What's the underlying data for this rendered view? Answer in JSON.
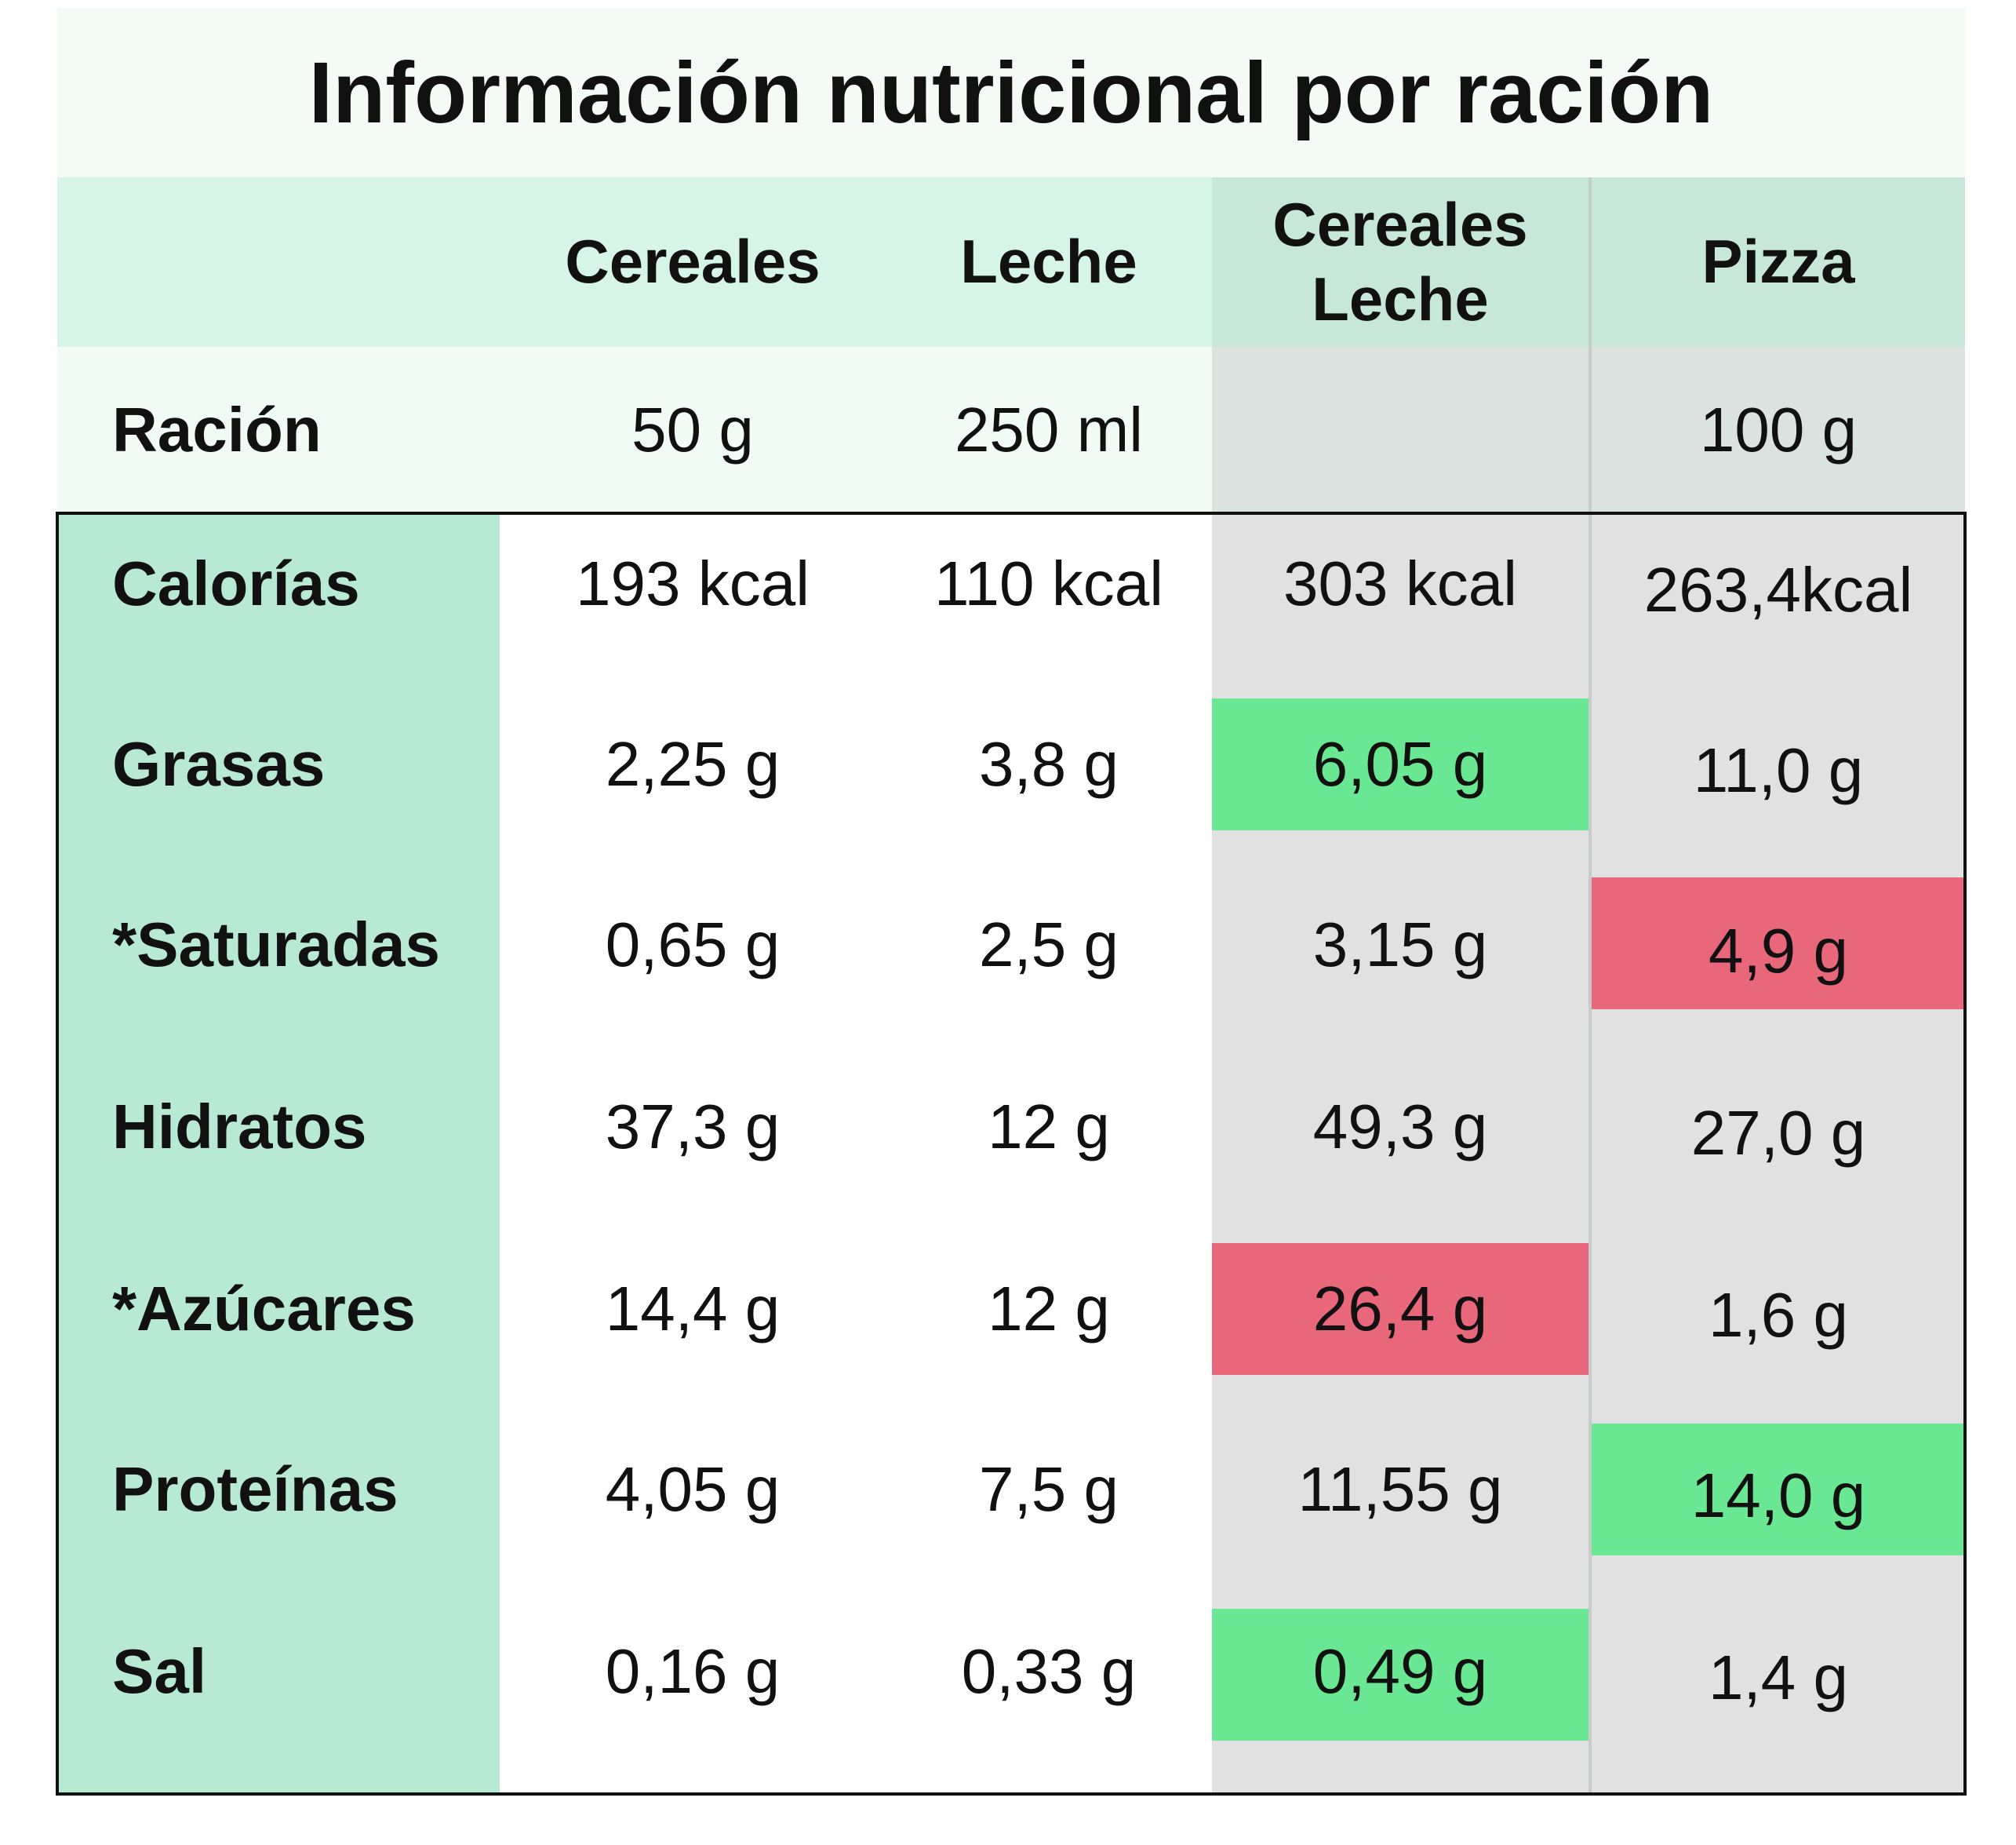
{
  "title": "Información nutricional por ración",
  "columns": [
    "Cereales",
    "Leche",
    "Cereales\nLeche",
    "Pizza"
  ],
  "racion": {
    "label": "Ración",
    "values": [
      "50 g",
      "250 ml",
      "",
      "100 g"
    ]
  },
  "rows": [
    {
      "label": "Calorías",
      "values": [
        "193 kcal",
        "110 kcal",
        "303 kcal",
        "263,4kcal"
      ]
    },
    {
      "label": "Grasas",
      "values": [
        "2,25 g",
        "3,8 g",
        "6,05 g",
        "11,0 g"
      ]
    },
    {
      "label": "*Saturadas",
      "values": [
        "0,65 g",
        "2,5 g",
        "3,15 g",
        "4,9 g"
      ]
    },
    {
      "label": "Hidratos",
      "values": [
        "37,3 g",
        "12 g",
        "49,3 g",
        "27,0 g"
      ]
    },
    {
      "label": "*Azúcares",
      "values": [
        "14,4 g",
        "12 g",
        "26,4 g",
        "1,6 g"
      ]
    },
    {
      "label": "Proteínas",
      "values": [
        "4,05 g",
        "7,5 g",
        "11,55 g",
        "14,0 g"
      ]
    },
    {
      "label": "Sal",
      "values": [
        "0,16 g",
        "0,33 g",
        "0,49 g",
        "1,4 g"
      ]
    }
  ],
  "highlights": [
    {
      "row": "Grasas",
      "column": "Cereales\nLeche",
      "status": "green"
    },
    {
      "row": "*Saturadas",
      "column": "Pizza",
      "status": "red"
    },
    {
      "row": "*Azúcares",
      "column": "Cereales\nLeche",
      "status": "red"
    },
    {
      "row": "Proteínas",
      "column": "Pizza",
      "status": "green"
    },
    {
      "row": "Sal",
      "column": "Cereales\nLeche",
      "status": "green"
    }
  ],
  "colors": {
    "header": "#d6f4e7",
    "header_dark": "#c6e7d9",
    "label_column": "#b8ead3",
    "grey_column": "#e1e1e1",
    "green": "#69e792",
    "red": "#e8677b"
  }
}
